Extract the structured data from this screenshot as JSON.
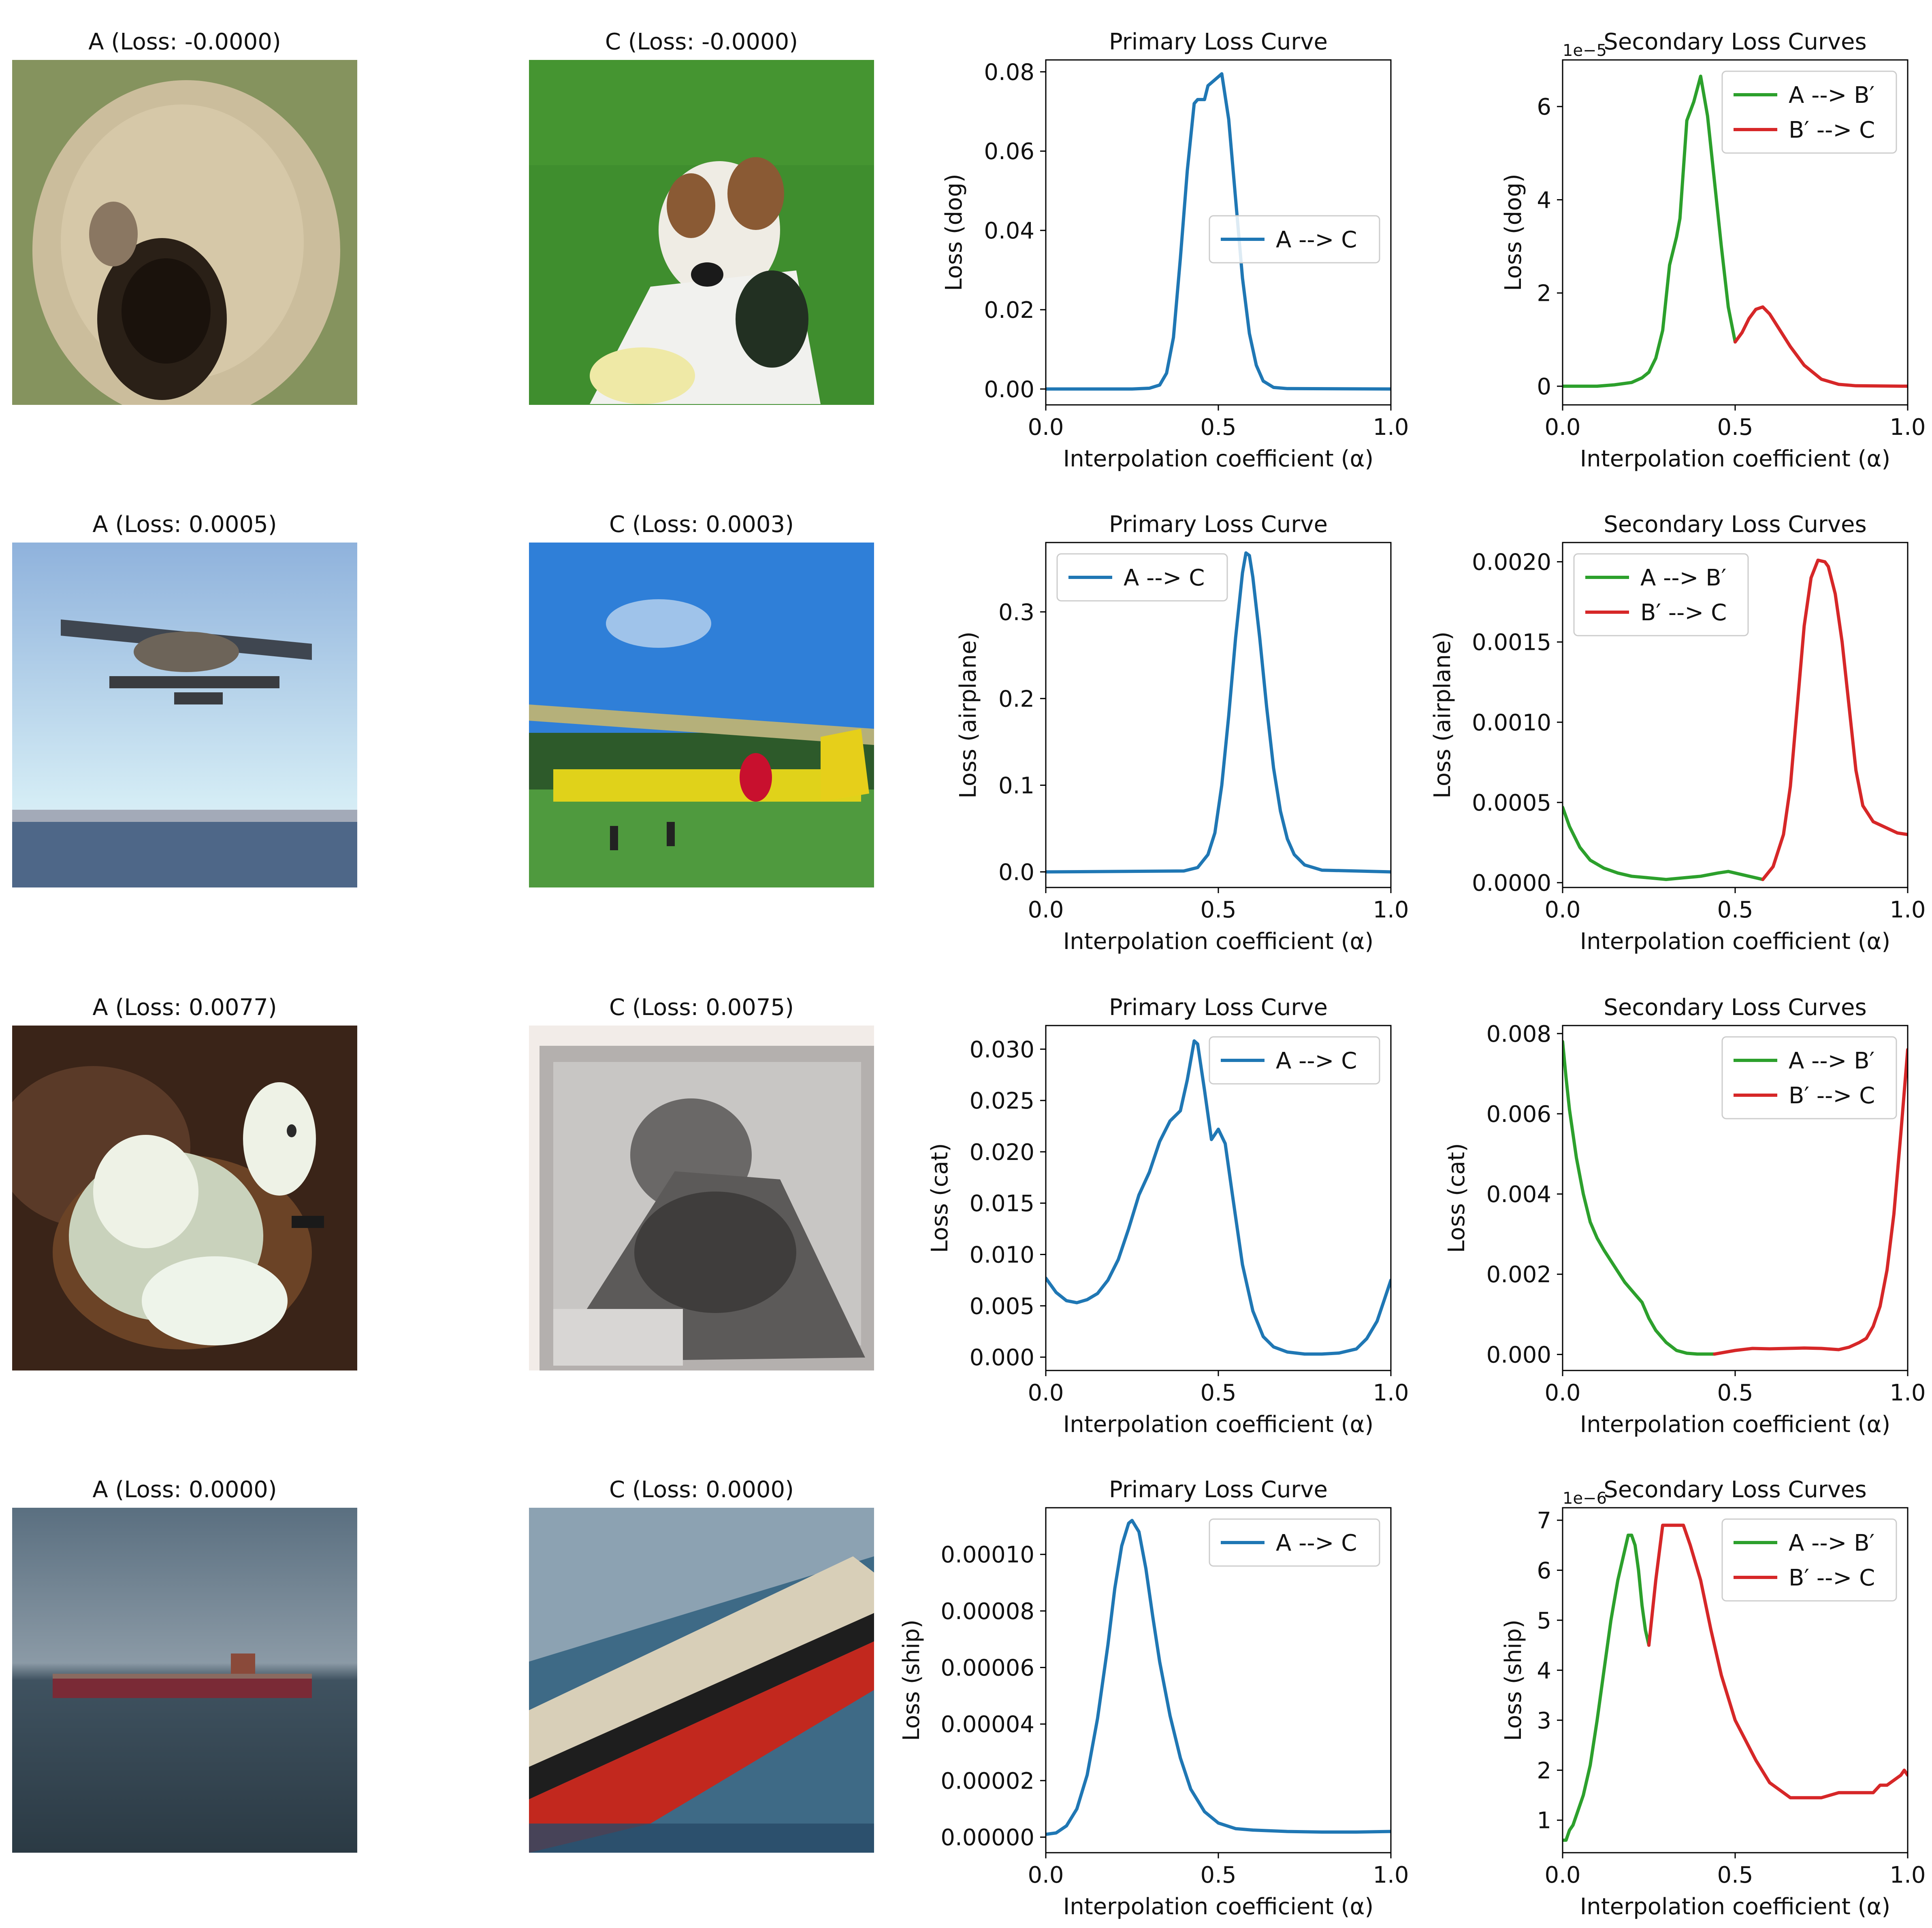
{
  "figure": {
    "image_titles": [
      [
        "A (Loss: -0.0000)",
        "C (Loss: -0.0000)"
      ],
      [
        "A (Loss: 0.0005)",
        "C (Loss: 0.0003)"
      ],
      [
        "A (Loss: 0.0077)",
        "C (Loss: 0.0075)"
      ],
      [
        "A (Loss: 0.0000)",
        "C (Loss: 0.0000)"
      ]
    ],
    "image_subjects": [
      [
        "dog",
        "dog"
      ],
      [
        "airplane",
        "airplane"
      ],
      [
        "cat",
        "cat"
      ],
      [
        "ship",
        "ship"
      ]
    ]
  },
  "colors": {
    "blue": "#1f77b4",
    "green": "#2ca02c",
    "red": "#d62728"
  },
  "chart_data": [
    {
      "type": "line",
      "title": "Primary Loss Curve",
      "xlabel": "Interpolation coefficient (α)",
      "ylabel": "Loss (dog)",
      "xlim": [
        0,
        1
      ],
      "ylim": [
        -0.004,
        0.083
      ],
      "xticks": [
        "0.0",
        "0.5",
        "1.0"
      ],
      "xtick_values": [
        0,
        0.5,
        1
      ],
      "yticks": [
        "0.00",
        "0.02",
        "0.04",
        "0.06",
        "0.08"
      ],
      "ytick_values": [
        0,
        0.02,
        0.04,
        0.06,
        0.08
      ],
      "legend": "center-right",
      "series": [
        {
          "name": "A --> C",
          "color": "#1f77b4",
          "x": [
            0,
            0.25,
            0.3,
            0.33,
            0.35,
            0.37,
            0.39,
            0.41,
            0.43,
            0.44,
            0.46,
            0.47,
            0.49,
            0.51,
            0.53,
            0.55,
            0.57,
            0.59,
            0.61,
            0.63,
            0.66,
            0.7,
            1
          ],
          "y": [
            0,
            0,
            0.0002,
            0.001,
            0.004,
            0.013,
            0.033,
            0.055,
            0.072,
            0.073,
            0.073,
            0.0765,
            0.078,
            0.0795,
            0.068,
            0.048,
            0.028,
            0.014,
            0.006,
            0.002,
            0.0004,
            0.0001,
            0
          ]
        }
      ]
    },
    {
      "type": "line",
      "title": "Secondary Loss Curves",
      "xlabel": "Interpolation coefficient (α)",
      "ylabel": "Loss (dog)",
      "xlim": [
        0,
        1
      ],
      "ylim": [
        -0.4,
        7.0
      ],
      "yticks": [
        "0",
        "2",
        "4",
        "6"
      ],
      "ytick_values": [
        0,
        2,
        4,
        6
      ],
      "xticks": [
        "0.0",
        "0.5",
        "1.0"
      ],
      "xtick_values": [
        0,
        0.5,
        1
      ],
      "offset_text": "1e−5",
      "legend": "top-right",
      "series": [
        {
          "name": "A --> B′",
          "color": "#2ca02c",
          "x": [
            0,
            0.1,
            0.15,
            0.2,
            0.23,
            0.25,
            0.27,
            0.29,
            0.31,
            0.33,
            0.34,
            0.36,
            0.38,
            0.4,
            0.42,
            0.44,
            0.46,
            0.48,
            0.5
          ],
          "y": [
            0,
            0,
            0.03,
            0.08,
            0.18,
            0.3,
            0.6,
            1.2,
            2.6,
            3.2,
            3.6,
            5.7,
            6.1,
            6.65,
            5.8,
            4.4,
            3.0,
            1.7,
            0.95
          ]
        },
        {
          "name": "B′ --> C",
          "color": "#d62728",
          "x": [
            0.5,
            0.52,
            0.54,
            0.56,
            0.58,
            0.6,
            0.63,
            0.66,
            0.7,
            0.75,
            0.8,
            0.85,
            1
          ],
          "y": [
            0.95,
            1.15,
            1.45,
            1.65,
            1.7,
            1.55,
            1.2,
            0.85,
            0.45,
            0.15,
            0.04,
            0.01,
            0
          ]
        }
      ]
    },
    {
      "type": "line",
      "title": "Primary Loss Curve",
      "xlabel": "Interpolation coefficient (α)",
      "ylabel": "Loss (airplane)",
      "xlim": [
        0,
        1
      ],
      "ylim": [
        -0.018,
        0.38
      ],
      "yticks": [
        "0.0",
        "0.1",
        "0.2",
        "0.3"
      ],
      "ytick_values": [
        0,
        0.1,
        0.2,
        0.3
      ],
      "xticks": [
        "0.0",
        "0.5",
        "1.0"
      ],
      "xtick_values": [
        0,
        0.5,
        1
      ],
      "legend": "top-left",
      "series": [
        {
          "name": "A --> C",
          "color": "#1f77b4",
          "x": [
            0,
            0.4,
            0.44,
            0.47,
            0.49,
            0.51,
            0.53,
            0.55,
            0.57,
            0.58,
            0.59,
            0.6,
            0.62,
            0.64,
            0.66,
            0.68,
            0.7,
            0.72,
            0.75,
            0.8,
            1
          ],
          "y": [
            0,
            0.001,
            0.005,
            0.02,
            0.045,
            0.1,
            0.18,
            0.27,
            0.345,
            0.368,
            0.365,
            0.34,
            0.27,
            0.19,
            0.12,
            0.07,
            0.038,
            0.02,
            0.008,
            0.002,
            0
          ]
        }
      ]
    },
    {
      "type": "line",
      "title": "Secondary Loss Curves",
      "xlabel": "Interpolation coefficient (α)",
      "ylabel": "Loss (airplane)",
      "xlim": [
        0,
        1
      ],
      "ylim": [
        -3e-05,
        0.00212
      ],
      "yticks": [
        "0.0000",
        "0.0005",
        "0.0010",
        "0.0015",
        "0.0020"
      ],
      "ytick_values": [
        0,
        0.0005,
        0.001,
        0.0015,
        0.002
      ],
      "xticks": [
        "0.0",
        "0.5",
        "1.0"
      ],
      "xtick_values": [
        0,
        0.5,
        1
      ],
      "legend": "top-left",
      "series": [
        {
          "name": "A --> B′",
          "color": "#2ca02c",
          "x": [
            0,
            0.02,
            0.05,
            0.08,
            0.12,
            0.16,
            0.2,
            0.25,
            0.3,
            0.35,
            0.4,
            0.45,
            0.48,
            0.52,
            0.56,
            0.58
          ],
          "y": [
            0.00047,
            0.00035,
            0.00022,
            0.00014,
            9e-05,
            6e-05,
            4e-05,
            3e-05,
            2e-05,
            3e-05,
            4e-05,
            6e-05,
            7e-05,
            5e-05,
            3e-05,
            2e-05
          ]
        },
        {
          "name": "B′ --> C",
          "color": "#d62728",
          "x": [
            0.58,
            0.61,
            0.64,
            0.66,
            0.68,
            0.7,
            0.72,
            0.74,
            0.76,
            0.77,
            0.79,
            0.81,
            0.83,
            0.85,
            0.87,
            0.9,
            0.94,
            0.97,
            1
          ],
          "y": [
            2e-05,
            0.0001,
            0.0003,
            0.0006,
            0.0011,
            0.0016,
            0.0019,
            0.00201,
            0.002,
            0.00197,
            0.0018,
            0.0015,
            0.0011,
            0.0007,
            0.00048,
            0.00038,
            0.00034,
            0.00031,
            0.0003
          ]
        }
      ]
    },
    {
      "type": "line",
      "title": "Primary Loss Curve",
      "xlabel": "Interpolation coefficient (α)",
      "ylabel": "Loss (cat)",
      "xlim": [
        0,
        1
      ],
      "ylim": [
        -0.0013,
        0.0323
      ],
      "yticks": [
        "0.000",
        "0.005",
        "0.010",
        "0.015",
        "0.020",
        "0.025",
        "0.030"
      ],
      "ytick_values": [
        0,
        0.005,
        0.01,
        0.015,
        0.02,
        0.025,
        0.03
      ],
      "xticks": [
        "0.0",
        "0.5",
        "1.0"
      ],
      "xtick_values": [
        0,
        0.5,
        1
      ],
      "legend": "top-right",
      "series": [
        {
          "name": "A --> C",
          "color": "#1f77b4",
          "x": [
            0,
            0.03,
            0.06,
            0.09,
            0.12,
            0.15,
            0.18,
            0.21,
            0.24,
            0.27,
            0.3,
            0.33,
            0.36,
            0.39,
            0.41,
            0.43,
            0.44,
            0.46,
            0.48,
            0.5,
            0.52,
            0.54,
            0.57,
            0.6,
            0.63,
            0.66,
            0.7,
            0.75,
            0.8,
            0.85,
            0.9,
            0.93,
            0.96,
            0.98,
            1
          ],
          "y": [
            0.0077,
            0.0063,
            0.0055,
            0.0053,
            0.0056,
            0.0062,
            0.0075,
            0.0095,
            0.0125,
            0.0158,
            0.018,
            0.021,
            0.023,
            0.024,
            0.027,
            0.0308,
            0.0305,
            0.026,
            0.0212,
            0.0222,
            0.0208,
            0.016,
            0.009,
            0.0045,
            0.002,
            0.001,
            0.0005,
            0.0003,
            0.0003,
            0.0004,
            0.0008,
            0.0018,
            0.0035,
            0.0055,
            0.0075
          ]
        }
      ]
    },
    {
      "type": "line",
      "title": "Secondary Loss Curves",
      "xlabel": "Interpolation coefficient (α)",
      "ylabel": "Loss (cat)",
      "xlim": [
        0,
        1
      ],
      "ylim": [
        -0.0004,
        0.0082
      ],
      "yticks": [
        "0.000",
        "0.002",
        "0.004",
        "0.006",
        "0.008"
      ],
      "ytick_values": [
        0,
        0.002,
        0.004,
        0.006,
        0.008
      ],
      "xticks": [
        "0.0",
        "0.5",
        "1.0"
      ],
      "xtick_values": [
        0,
        0.5,
        1
      ],
      "legend": "top-right",
      "series": [
        {
          "name": "A --> B′",
          "color": "#2ca02c",
          "x": [
            0,
            0.01,
            0.02,
            0.04,
            0.06,
            0.08,
            0.1,
            0.12,
            0.15,
            0.18,
            0.21,
            0.23,
            0.25,
            0.27,
            0.3,
            0.33,
            0.36,
            0.39,
            0.42,
            0.44
          ],
          "y": [
            0.0078,
            0.0069,
            0.0061,
            0.0049,
            0.004,
            0.0033,
            0.0029,
            0.0026,
            0.0022,
            0.0018,
            0.0015,
            0.0013,
            0.0009,
            0.0006,
            0.0003,
            0.0001,
            3e-05,
            1e-05,
            1e-05,
            1e-05
          ]
        },
        {
          "name": "B′ --> C",
          "color": "#d62728",
          "x": [
            0.44,
            0.5,
            0.55,
            0.6,
            0.65,
            0.7,
            0.75,
            0.8,
            0.83,
            0.86,
            0.88,
            0.9,
            0.92,
            0.94,
            0.96,
            0.98,
            1
          ],
          "y": [
            1e-05,
            0.0001,
            0.00015,
            0.00014,
            0.00015,
            0.00016,
            0.00015,
            0.00012,
            0.00018,
            0.0003,
            0.0004,
            0.0007,
            0.0012,
            0.0021,
            0.0035,
            0.0055,
            0.0076
          ]
        }
      ]
    },
    {
      "type": "line",
      "title": "Primary Loss Curve",
      "xlabel": "Interpolation coefficient (α)",
      "ylabel": "Loss (ship)",
      "xlim": [
        0,
        1
      ],
      "ylim": [
        -5.5e-06,
        0.0001165
      ],
      "yticks": [
        "0.00000",
        "0.00002",
        "0.00004",
        "0.00006",
        "0.00008",
        "0.00010"
      ],
      "ytick_values": [
        0,
        2e-05,
        4e-05,
        6e-05,
        8e-05,
        0.0001
      ],
      "xticks": [
        "0.0",
        "0.5",
        "1.0"
      ],
      "xtick_values": [
        0,
        0.5,
        1
      ],
      "legend": "top-right",
      "series": [
        {
          "name": "A --> C",
          "color": "#1f77b4",
          "x": [
            0,
            0.03,
            0.06,
            0.09,
            0.12,
            0.15,
            0.18,
            0.2,
            0.22,
            0.24,
            0.25,
            0.27,
            0.29,
            0.31,
            0.33,
            0.36,
            0.39,
            0.42,
            0.46,
            0.5,
            0.55,
            0.6,
            0.7,
            0.8,
            0.9,
            1
          ],
          "y": [
            1e-06,
            1.5e-06,
            4e-06,
            1e-05,
            2.2e-05,
            4.2e-05,
            6.8e-05,
            8.8e-05,
            0.000103,
            0.000111,
            0.000112,
            0.000108,
            9.5e-05,
            7.8e-05,
            6.2e-05,
            4.3e-05,
            2.8e-05,
            1.7e-05,
            9e-06,
            5e-06,
            3e-06,
            2.5e-06,
            2e-06,
            1.8e-06,
            1.8e-06,
            2e-06
          ]
        }
      ]
    },
    {
      "type": "line",
      "title": "Secondary Loss Curves",
      "xlabel": "Interpolation coefficient (α)",
      "ylabel": "Loss (ship)",
      "xlim": [
        0,
        1
      ],
      "ylim": [
        0.35,
        7.25
      ],
      "yticks": [
        "1",
        "2",
        "3",
        "4",
        "5",
        "6",
        "7"
      ],
      "ytick_values": [
        1,
        2,
        3,
        4,
        5,
        6,
        7
      ],
      "xticks": [
        "0.0",
        "0.5",
        "1.0"
      ],
      "xtick_values": [
        0,
        0.5,
        1
      ],
      "offset_text": "1e−6",
      "legend": "top-right",
      "series": [
        {
          "name": "A --> B′",
          "color": "#2ca02c",
          "x": [
            0,
            0.01,
            0.02,
            0.03,
            0.04,
            0.05,
            0.06,
            0.08,
            0.1,
            0.12,
            0.14,
            0.16,
            0.18,
            0.19,
            0.2,
            0.21,
            0.22,
            0.23,
            0.24,
            0.25
          ],
          "y": [
            0.6,
            0.6,
            0.8,
            0.9,
            1.1,
            1.3,
            1.5,
            2.1,
            3.0,
            4.0,
            5.0,
            5.8,
            6.4,
            6.7,
            6.7,
            6.5,
            6.0,
            5.3,
            4.8,
            4.5
          ]
        },
        {
          "name": "B′ --> C",
          "color": "#d62728",
          "x": [
            0.25,
            0.27,
            0.29,
            0.31,
            0.33,
            0.35,
            0.37,
            0.4,
            0.43,
            0.46,
            0.5,
            0.53,
            0.56,
            0.6,
            0.63,
            0.66,
            0.7,
            0.75,
            0.8,
            0.85,
            0.88,
            0.9,
            0.92,
            0.94,
            0.96,
            0.98,
            0.99,
            1
          ],
          "y": [
            4.5,
            5.8,
            6.9,
            6.9,
            6.9,
            6.9,
            6.5,
            5.8,
            4.8,
            3.9,
            3.0,
            2.6,
            2.2,
            1.75,
            1.6,
            1.45,
            1.45,
            1.45,
            1.55,
            1.55,
            1.55,
            1.55,
            1.7,
            1.7,
            1.8,
            1.9,
            2.0,
            1.9
          ]
        }
      ]
    }
  ]
}
